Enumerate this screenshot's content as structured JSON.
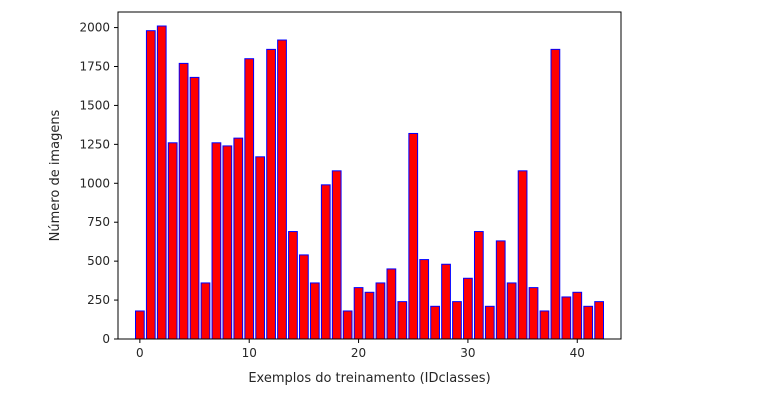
{
  "chart_data": {
    "type": "bar",
    "xlabel": "Exemplos do treinamento (IDclasses)",
    "ylabel": "Número de imagens",
    "xlim": [
      -2,
      44
    ],
    "ylim": [
      0,
      2100
    ],
    "xticks": [
      0,
      10,
      20,
      30,
      40
    ],
    "yticks": [
      0,
      250,
      500,
      750,
      1000,
      1250,
      1500,
      1750,
      2000
    ],
    "grid": false,
    "bar_fill": "#ff0000",
    "bar_edge": "#0000ff",
    "categories": [
      0,
      1,
      2,
      3,
      4,
      5,
      6,
      7,
      8,
      9,
      10,
      11,
      12,
      13,
      14,
      15,
      16,
      17,
      18,
      19,
      20,
      21,
      22,
      23,
      24,
      25,
      26,
      27,
      28,
      29,
      30,
      31,
      32,
      33,
      34,
      35,
      36,
      37,
      38,
      39,
      40,
      41,
      42
    ],
    "values": [
      180,
      1980,
      2010,
      1260,
      1770,
      1680,
      360,
      1260,
      1240,
      1290,
      1800,
      1170,
      1860,
      1920,
      690,
      540,
      360,
      990,
      1080,
      180,
      330,
      300,
      360,
      450,
      240,
      1320,
      510,
      210,
      480,
      240,
      390,
      690,
      210,
      630,
      360,
      1080,
      330,
      180,
      1860,
      270,
      300,
      210,
      240
    ]
  }
}
